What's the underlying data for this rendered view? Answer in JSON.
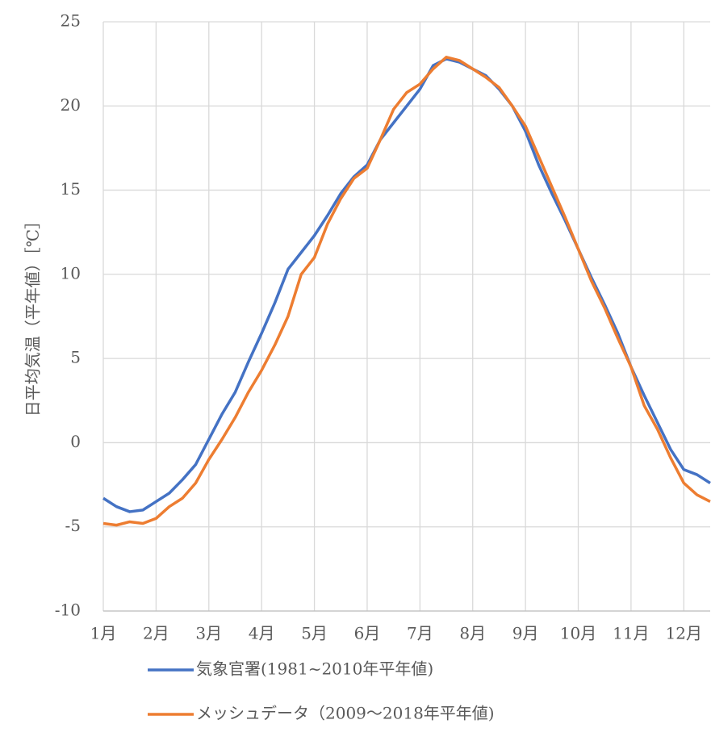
{
  "chart_data": {
    "type": "line",
    "y_label": "日平均気温（平年値）［℃］",
    "categories": [
      "1月",
      null,
      null,
      null,
      "2月",
      null,
      null,
      null,
      "3月",
      null,
      null,
      null,
      "4月",
      null,
      null,
      null,
      "5月",
      null,
      null,
      null,
      "6月",
      null,
      null,
      null,
      "7月",
      null,
      null,
      null,
      "8月",
      null,
      null,
      null,
      "9月",
      null,
      null,
      null,
      "10月",
      null,
      null,
      null,
      "11月",
      null,
      null,
      null,
      "12月",
      null,
      null
    ],
    "series": [
      {
        "name": "気象官署(1981~2010年平年値)",
        "color": "#4472c4",
        "values": [
          -3.3,
          -3.8,
          -4.1,
          -4.0,
          -3.5,
          -3.0,
          -2.2,
          -1.3,
          0.2,
          1.7,
          3.0,
          4.8,
          6.5,
          8.3,
          10.3,
          11.3,
          12.3,
          13.5,
          14.8,
          15.8,
          16.5,
          18.0,
          19.0,
          20.0,
          21.0,
          22.4,
          22.8,
          22.6,
          22.2,
          21.8,
          21.0,
          20.0,
          18.5,
          16.5,
          14.8,
          13.2,
          11.5,
          9.8,
          8.2,
          6.5,
          4.5,
          2.8,
          1.2,
          -0.4,
          -1.6,
          -1.9,
          -2.4
        ]
      },
      {
        "name": "メッシュデータ（2009～2018年平年値)",
        "color": "#ed7d31",
        "values": [
          -4.8,
          -4.9,
          -4.7,
          -4.8,
          -4.5,
          -3.8,
          -3.3,
          -2.4,
          -1.0,
          0.2,
          1.5,
          3.0,
          4.3,
          5.8,
          7.5,
          10.0,
          11.0,
          13.0,
          14.5,
          15.7,
          16.3,
          18.0,
          19.8,
          20.8,
          21.3,
          22.2,
          22.9,
          22.7,
          22.2,
          21.7,
          21.1,
          20.0,
          18.8,
          17.0,
          15.2,
          13.4,
          11.5,
          9.6,
          8.0,
          6.2,
          4.5,
          2.2,
          0.8,
          -0.9,
          -2.4,
          -3.1,
          -3.5
        ]
      }
    ],
    "ylim": [
      -10,
      25
    ],
    "yticks": [
      -10,
      -5,
      0,
      5,
      10,
      15,
      20,
      25
    ],
    "grid": true
  }
}
